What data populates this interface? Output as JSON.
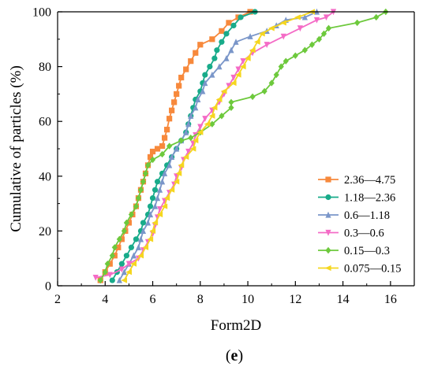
{
  "chart_data": {
    "type": "line",
    "title": "",
    "xlabel": "Form2D",
    "ylabel": "Cumulative of particles (%)",
    "xlim": [
      2,
      17
    ],
    "ylim": [
      0,
      100
    ],
    "xticks": [
      2,
      4,
      6,
      8,
      10,
      12,
      14,
      16
    ],
    "yticks": [
      0,
      20,
      40,
      60,
      80,
      100
    ],
    "grid": false,
    "legend_position": "lower-right",
    "panel_label": "(e)",
    "series": [
      {
        "name": "2.36—4.75",
        "color": "#f7893c",
        "marker": "square",
        "points": [
          [
            3.8,
            2
          ],
          [
            4.0,
            5
          ],
          [
            4.2,
            8
          ],
          [
            4.4,
            11
          ],
          [
            4.55,
            14
          ],
          [
            4.7,
            17
          ],
          [
            4.85,
            20
          ],
          [
            5.0,
            23
          ],
          [
            5.15,
            26
          ],
          [
            5.3,
            29
          ],
          [
            5.4,
            32
          ],
          [
            5.5,
            35
          ],
          [
            5.6,
            38
          ],
          [
            5.7,
            41
          ],
          [
            5.8,
            44
          ],
          [
            5.9,
            47
          ],
          [
            6.0,
            49
          ],
          [
            6.2,
            50
          ],
          [
            6.4,
            51
          ],
          [
            6.5,
            54
          ],
          [
            6.6,
            57
          ],
          [
            6.7,
            61
          ],
          [
            6.8,
            64
          ],
          [
            6.9,
            67
          ],
          [
            7.0,
            70
          ],
          [
            7.1,
            73
          ],
          [
            7.2,
            76
          ],
          [
            7.4,
            79
          ],
          [
            7.6,
            82
          ],
          [
            7.8,
            85
          ],
          [
            8.0,
            88
          ],
          [
            8.5,
            90
          ],
          [
            8.9,
            93
          ],
          [
            9.2,
            96
          ],
          [
            9.6,
            98
          ],
          [
            10.1,
            100
          ]
        ]
      },
      {
        "name": "1.18—2.36",
        "color": "#18ab8a",
        "marker": "circle",
        "points": [
          [
            4.3,
            2
          ],
          [
            4.5,
            5
          ],
          [
            4.7,
            8
          ],
          [
            4.9,
            11
          ],
          [
            5.1,
            14
          ],
          [
            5.3,
            17
          ],
          [
            5.5,
            20
          ],
          [
            5.6,
            23
          ],
          [
            5.8,
            26
          ],
          [
            5.9,
            29
          ],
          [
            6.0,
            32
          ],
          [
            6.1,
            35
          ],
          [
            6.2,
            38
          ],
          [
            6.4,
            41
          ],
          [
            6.6,
            44
          ],
          [
            6.8,
            47
          ],
          [
            7.0,
            50
          ],
          [
            7.2,
            53
          ],
          [
            7.4,
            56
          ],
          [
            7.5,
            59
          ],
          [
            7.6,
            62
          ],
          [
            7.7,
            65
          ],
          [
            7.8,
            68
          ],
          [
            8.0,
            71
          ],
          [
            8.1,
            74
          ],
          [
            8.2,
            77
          ],
          [
            8.4,
            80
          ],
          [
            8.6,
            83
          ],
          [
            8.7,
            86
          ],
          [
            8.9,
            89
          ],
          [
            9.1,
            92
          ],
          [
            9.4,
            95
          ],
          [
            9.7,
            98
          ],
          [
            10.3,
            100
          ]
        ]
      },
      {
        "name": "0.6—1.18",
        "color": "#7a96c9",
        "marker": "triangle",
        "points": [
          [
            4.6,
            2
          ],
          [
            4.8,
            5
          ],
          [
            5.0,
            8
          ],
          [
            5.2,
            11
          ],
          [
            5.4,
            14
          ],
          [
            5.5,
            17
          ],
          [
            5.6,
            20
          ],
          [
            5.8,
            23
          ],
          [
            5.9,
            26
          ],
          [
            6.1,
            29
          ],
          [
            6.2,
            32
          ],
          [
            6.3,
            35
          ],
          [
            6.4,
            38
          ],
          [
            6.5,
            41
          ],
          [
            6.7,
            44
          ],
          [
            6.8,
            47
          ],
          [
            7.0,
            50
          ],
          [
            7.2,
            53
          ],
          [
            7.4,
            56
          ],
          [
            7.5,
            59
          ],
          [
            7.6,
            62
          ],
          [
            7.8,
            65
          ],
          [
            7.9,
            68
          ],
          [
            8.1,
            71
          ],
          [
            8.2,
            74
          ],
          [
            8.5,
            77
          ],
          [
            8.8,
            80
          ],
          [
            9.1,
            83
          ],
          [
            9.3,
            86
          ],
          [
            9.5,
            89
          ],
          [
            10.1,
            91
          ],
          [
            10.8,
            93
          ],
          [
            11.2,
            95
          ],
          [
            11.6,
            97
          ],
          [
            12.4,
            98
          ],
          [
            12.9,
            100
          ]
        ]
      },
      {
        "name": "0.3—0.6",
        "color": "#f46bc6",
        "marker": "inverted-triangle",
        "points": [
          [
            3.6,
            3
          ],
          [
            4.2,
            4
          ],
          [
            4.7,
            6
          ],
          [
            5.0,
            8
          ],
          [
            5.4,
            10
          ],
          [
            5.6,
            13
          ],
          [
            5.8,
            16
          ],
          [
            6.0,
            19
          ],
          [
            6.1,
            22
          ],
          [
            6.2,
            25
          ],
          [
            6.3,
            28
          ],
          [
            6.5,
            31
          ],
          [
            6.7,
            34
          ],
          [
            6.9,
            37
          ],
          [
            7.0,
            40
          ],
          [
            7.2,
            43
          ],
          [
            7.3,
            46
          ],
          [
            7.5,
            49
          ],
          [
            7.7,
            52
          ],
          [
            7.8,
            55
          ],
          [
            8.0,
            58
          ],
          [
            8.2,
            61
          ],
          [
            8.5,
            64
          ],
          [
            8.8,
            67
          ],
          [
            9.0,
            70
          ],
          [
            9.2,
            73
          ],
          [
            9.4,
            76
          ],
          [
            9.6,
            79
          ],
          [
            9.8,
            82
          ],
          [
            10.2,
            85
          ],
          [
            10.8,
            88
          ],
          [
            11.5,
            91
          ],
          [
            12.2,
            94
          ],
          [
            12.9,
            97
          ],
          [
            13.3,
            98
          ],
          [
            13.6,
            100
          ]
        ]
      },
      {
        "name": "0.15—0.3",
        "color": "#6dc93c",
        "marker": "diamond",
        "points": [
          [
            3.8,
            2
          ],
          [
            4.0,
            5
          ],
          [
            4.1,
            8
          ],
          [
            4.3,
            11
          ],
          [
            4.4,
            14
          ],
          [
            4.6,
            17
          ],
          [
            4.8,
            20
          ],
          [
            4.9,
            23
          ],
          [
            5.1,
            26
          ],
          [
            5.3,
            29
          ],
          [
            5.4,
            32
          ],
          [
            5.5,
            35
          ],
          [
            5.6,
            38
          ],
          [
            5.7,
            41
          ],
          [
            5.8,
            44
          ],
          [
            6.0,
            46
          ],
          [
            6.4,
            48
          ],
          [
            6.7,
            51
          ],
          [
            7.2,
            53
          ],
          [
            7.6,
            54
          ],
          [
            8.0,
            56
          ],
          [
            8.5,
            59
          ],
          [
            8.9,
            62
          ],
          [
            9.3,
            65
          ],
          [
            9.3,
            67
          ],
          [
            10.2,
            69
          ],
          [
            10.7,
            71
          ],
          [
            11.0,
            74
          ],
          [
            11.2,
            77
          ],
          [
            11.4,
            80
          ],
          [
            11.6,
            82
          ],
          [
            12.0,
            84
          ],
          [
            12.4,
            86
          ],
          [
            12.7,
            88
          ],
          [
            13.0,
            90
          ],
          [
            13.2,
            92
          ],
          [
            13.4,
            94
          ],
          [
            14.6,
            96
          ],
          [
            15.4,
            98
          ],
          [
            15.8,
            100
          ]
        ]
      },
      {
        "name": "0.075—0.15",
        "color": "#f5d61f",
        "marker": "left-triangle",
        "points": [
          [
            4.8,
            2
          ],
          [
            5.0,
            5
          ],
          [
            5.2,
            8
          ],
          [
            5.5,
            11
          ],
          [
            5.7,
            14
          ],
          [
            5.9,
            17
          ],
          [
            6.0,
            20
          ],
          [
            6.1,
            23
          ],
          [
            6.3,
            26
          ],
          [
            6.5,
            29
          ],
          [
            6.6,
            32
          ],
          [
            6.8,
            35
          ],
          [
            7.0,
            38
          ],
          [
            7.1,
            41
          ],
          [
            7.2,
            44
          ],
          [
            7.4,
            47
          ],
          [
            7.7,
            50
          ],
          [
            7.8,
            53
          ],
          [
            8.0,
            56
          ],
          [
            8.3,
            59
          ],
          [
            8.5,
            62
          ],
          [
            8.6,
            65
          ],
          [
            8.8,
            68
          ],
          [
            9.0,
            71
          ],
          [
            9.4,
            74
          ],
          [
            9.6,
            77
          ],
          [
            9.8,
            80
          ],
          [
            10.0,
            83
          ],
          [
            10.2,
            86
          ],
          [
            10.4,
            89
          ],
          [
            10.6,
            92
          ],
          [
            11.0,
            94
          ],
          [
            11.5,
            96
          ],
          [
            12.1,
            98
          ],
          [
            12.7,
            100
          ]
        ]
      }
    ]
  }
}
